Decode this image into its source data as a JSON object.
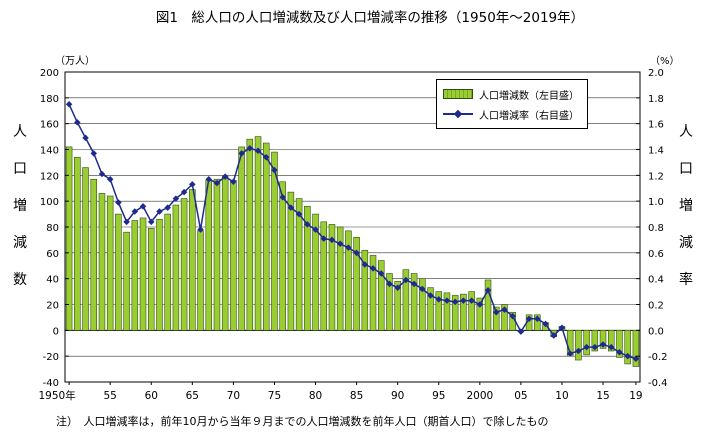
{
  "chart_data": {
    "type": "bar",
    "title": "図1　総人口の人口増減数及び人口増減率の推移（1950年～2019年）",
    "left_unit": "（万人）",
    "right_unit": "（%）",
    "left_axis_label": "人口増減数",
    "right_axis_label": "人口増減率",
    "left_ylim": [
      -40,
      200
    ],
    "left_ticks": [
      "200",
      "180",
      "160",
      "140",
      "120",
      "100",
      "80",
      "60",
      "40",
      "20",
      "0",
      "-20",
      "-40"
    ],
    "right_ylim": [
      -0.4,
      2.0
    ],
    "right_ticks": [
      "2.0",
      "1.8",
      "1.6",
      "1.4",
      "1.2",
      "1.0",
      "0.8",
      "0.6",
      "0.4",
      "0.2",
      "0.0",
      "-0.2",
      "-0.4"
    ],
    "x_tick_labels": [
      "1950年",
      "55",
      "60",
      "65",
      "70",
      "75",
      "80",
      "85",
      "90",
      "95",
      "2000",
      "05",
      "10",
      "15",
      "19"
    ],
    "x_tick_years": [
      1950,
      1955,
      1960,
      1965,
      1970,
      1975,
      1980,
      1985,
      1990,
      1995,
      2000,
      2005,
      2010,
      2015,
      2019
    ],
    "x": [
      1950,
      1951,
      1952,
      1953,
      1954,
      1955,
      1956,
      1957,
      1958,
      1959,
      1960,
      1961,
      1962,
      1963,
      1964,
      1965,
      1966,
      1967,
      1968,
      1969,
      1970,
      1971,
      1972,
      1973,
      1974,
      1975,
      1976,
      1977,
      1978,
      1979,
      1980,
      1981,
      1982,
      1983,
      1984,
      1985,
      1986,
      1987,
      1988,
      1989,
      1990,
      1991,
      1992,
      1993,
      1994,
      1995,
      1996,
      1997,
      1998,
      1999,
      2000,
      2001,
      2002,
      2003,
      2004,
      2005,
      2006,
      2007,
      2008,
      2009,
      2010,
      2011,
      2012,
      2013,
      2014,
      2015,
      2016,
      2017,
      2018,
      2019
    ],
    "series": [
      {
        "name": "人口増減数（左目盛）",
        "axis": "left",
        "color": "#9acd32",
        "values": [
          142,
          134,
          126,
          117,
          106,
          104,
          90,
          76,
          85,
          87,
          79,
          86,
          90,
          97,
          102,
          109,
          77,
          116,
          117,
          119,
          116,
          142,
          148,
          150,
          145,
          138,
          115,
          107,
          102,
          96,
          90,
          84,
          82,
          80,
          77,
          72,
          62,
          58,
          54,
          44,
          38,
          47,
          44,
          40,
          33,
          30,
          29,
          27,
          28,
          30,
          25,
          39,
          18,
          20,
          14,
          -1,
          12,
          12,
          6,
          -5,
          3,
          -20,
          -23,
          -19,
          -16,
          -14,
          -16,
          -21,
          -26,
          -28
        ]
      },
      {
        "name": "人口増減率（右目盛）",
        "axis": "right",
        "color": "#1f2a8f",
        "values": [
          1.75,
          1.61,
          1.49,
          1.37,
          1.21,
          1.17,
          0.99,
          0.84,
          0.92,
          0.96,
          0.84,
          0.92,
          0.95,
          1.02,
          1.07,
          1.13,
          0.78,
          1.17,
          1.14,
          1.19,
          1.15,
          1.37,
          1.41,
          1.39,
          1.34,
          1.24,
          1.03,
          0.95,
          0.9,
          0.82,
          0.78,
          0.71,
          0.7,
          0.67,
          0.64,
          0.6,
          0.51,
          0.48,
          0.44,
          0.36,
          0.33,
          0.39,
          0.36,
          0.32,
          0.27,
          0.24,
          0.23,
          0.22,
          0.23,
          0.23,
          0.2,
          0.31,
          0.14,
          0.16,
          0.11,
          -0.01,
          0.09,
          0.09,
          0.05,
          -0.04,
          0.02,
          -0.18,
          -0.16,
          -0.13,
          -0.13,
          -0.11,
          -0.13,
          -0.17,
          -0.2,
          -0.22
        ]
      }
    ],
    "grid": true,
    "legend_position": "top-right",
    "note": "注）　人口増減率は，前年10月から当年９月までの人口増減数を前年人口（期首人口）で除したもの"
  }
}
